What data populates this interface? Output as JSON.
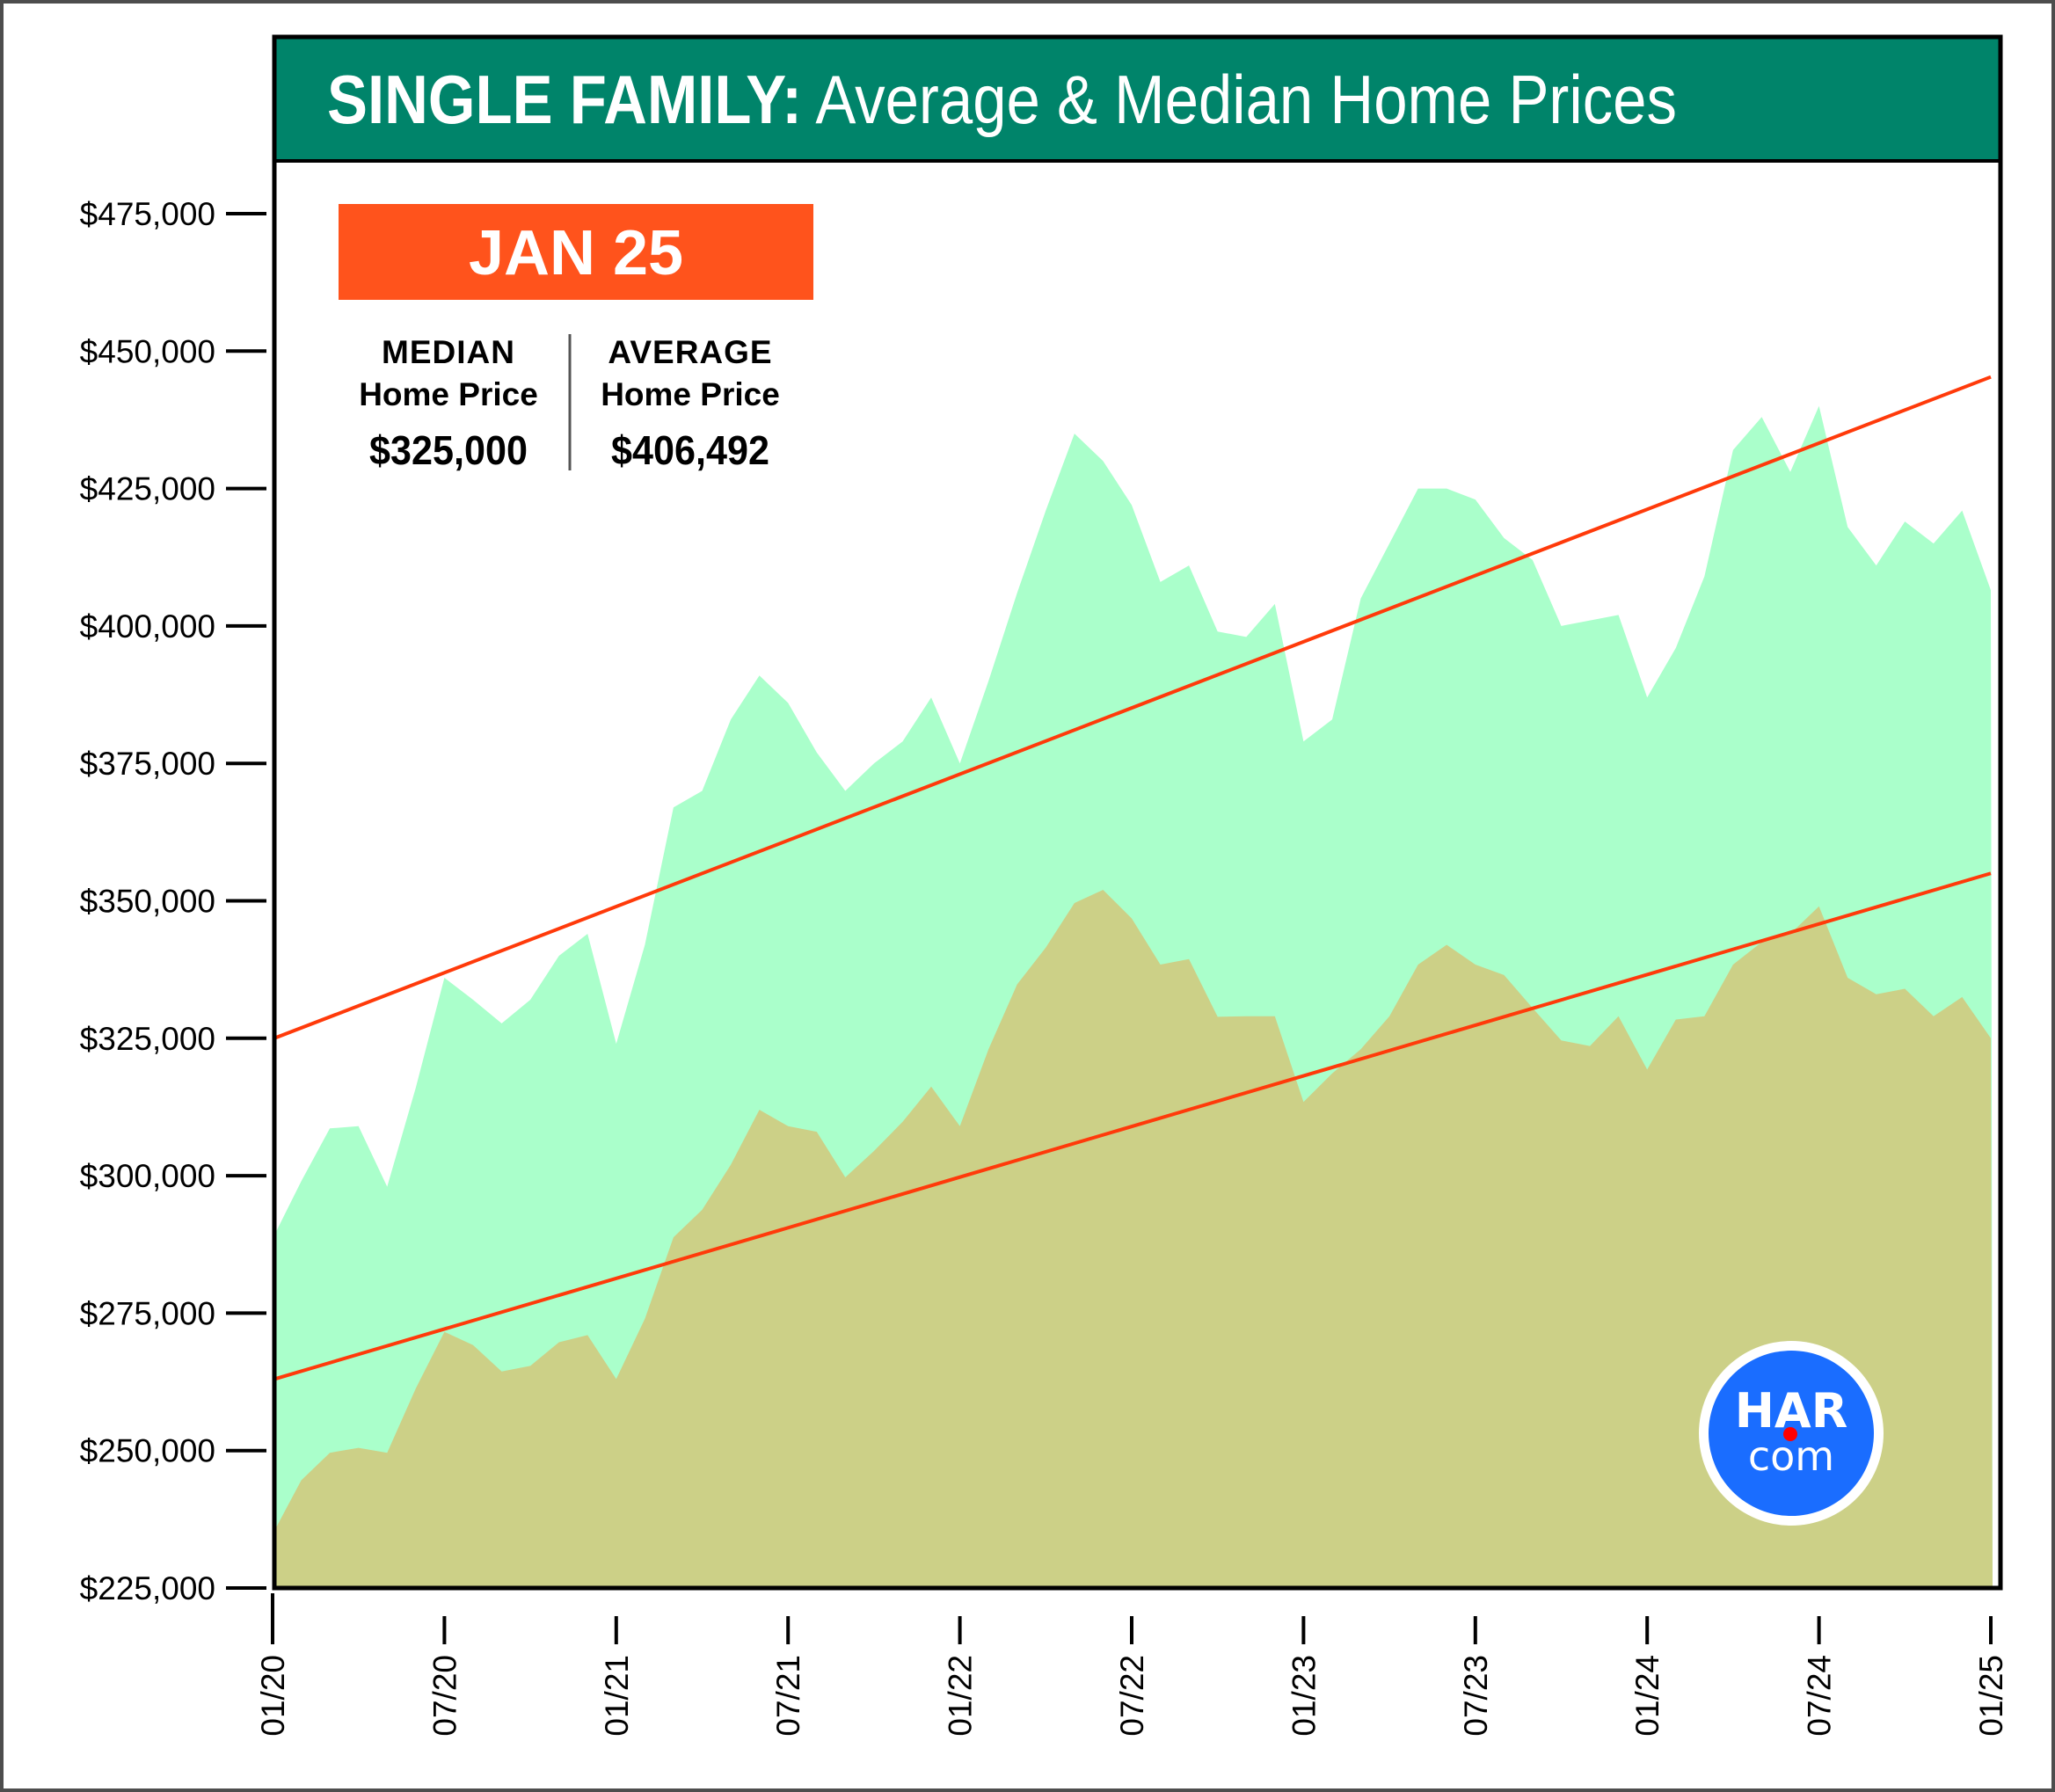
{
  "header": {
    "title_bold": "SINGLE FAMILY:",
    "title_rest": " Average & Median Home Prices"
  },
  "badge": {
    "label": "JAN 25"
  },
  "stats": {
    "median": {
      "heading": "MEDIAN",
      "sub": "Home Price",
      "value": "$325,000"
    },
    "average": {
      "heading": "AVERAGE",
      "sub": "Home Price",
      "value": "$406,492"
    }
  },
  "logo": {
    "top": "HAR",
    "bottom": "com"
  },
  "colors": {
    "header_bg": "#00846a",
    "badge_bg": "#ff531c",
    "average_fill": "#aaffcb",
    "median_fill": "#ccd087",
    "trend": "#ff3a0a",
    "logo_blue": "#1a6dff",
    "logo_dot": "#ff0000"
  },
  "chart_data": {
    "type": "area",
    "title": "SINGLE FAMILY: Average & Median Home Prices",
    "xlabel": "",
    "ylabel": "",
    "ylim": [
      225000,
      475000
    ],
    "yticks": [
      225000,
      250000,
      275000,
      300000,
      325000,
      350000,
      375000,
      400000,
      425000,
      450000,
      475000
    ],
    "ytick_labels": [
      "$225,000",
      "$250,000",
      "$275,000",
      "$300,000",
      "$325,000",
      "$350,000",
      "$375,000",
      "$400,000",
      "$425,000",
      "$450,000",
      "$475,000"
    ],
    "x_start": "01/20",
    "x_end": "01/25",
    "x_months": 61,
    "xtick_labels": [
      "01/20",
      "07/20",
      "01/21",
      "07/21",
      "01/22",
      "07/22",
      "01/23",
      "07/23",
      "01/24",
      "07/24",
      "01/25"
    ],
    "grid": false,
    "legend": "none",
    "series": [
      {
        "name": "Average Home Price",
        "values": [
          289500,
          299000,
          308600,
          309000,
          298000,
          316000,
          336000,
          332000,
          327700,
          332000,
          340000,
          344000,
          324000,
          342000,
          367000,
          370000,
          383000,
          391000,
          386000,
          377000,
          370000,
          375000,
          379000,
          387000,
          375000,
          390000,
          406000,
          421000,
          435000,
          430000,
          422000,
          408000,
          411000,
          399000,
          398000,
          404000,
          379000,
          383000,
          405000,
          415000,
          425000,
          425000,
          423000,
          416000,
          412000,
          400000,
          401000,
          402000,
          387000,
          396000,
          409000,
          432000,
          438000,
          428000,
          440000,
          418000,
          411000,
          419000,
          415000,
          421000,
          406492
        ]
      },
      {
        "name": "Median Home Price",
        "values": [
          235700,
          244600,
          249600,
          250500,
          249600,
          261300,
          271600,
          269200,
          264400,
          265400,
          269700,
          271000,
          263000,
          274000,
          288800,
          293800,
          302000,
          312000,
          309000,
          308000,
          299700,
          304500,
          309800,
          316200,
          309000,
          323000,
          334800,
          341500,
          349600,
          352000,
          346800,
          338400,
          339400,
          328900,
          329000,
          329000,
          313400,
          318600,
          323000,
          329000,
          338400,
          342000,
          338400,
          336500,
          330500,
          324600,
          323600,
          329000,
          319300,
          328400,
          329000,
          338400,
          342500,
          344000,
          349000,
          336000,
          333000,
          334000,
          329000,
          332500,
          325000
        ]
      }
    ],
    "trendlines": [
      {
        "name": "Average trend",
        "start": 325000,
        "end": 445300
      },
      {
        "name": "Median trend",
        "start": 263000,
        "end": 355000
      }
    ],
    "annotations": [
      "JAN 25",
      "MEDIAN Home Price $325,000",
      "AVERAGE Home Price $406,492"
    ]
  }
}
